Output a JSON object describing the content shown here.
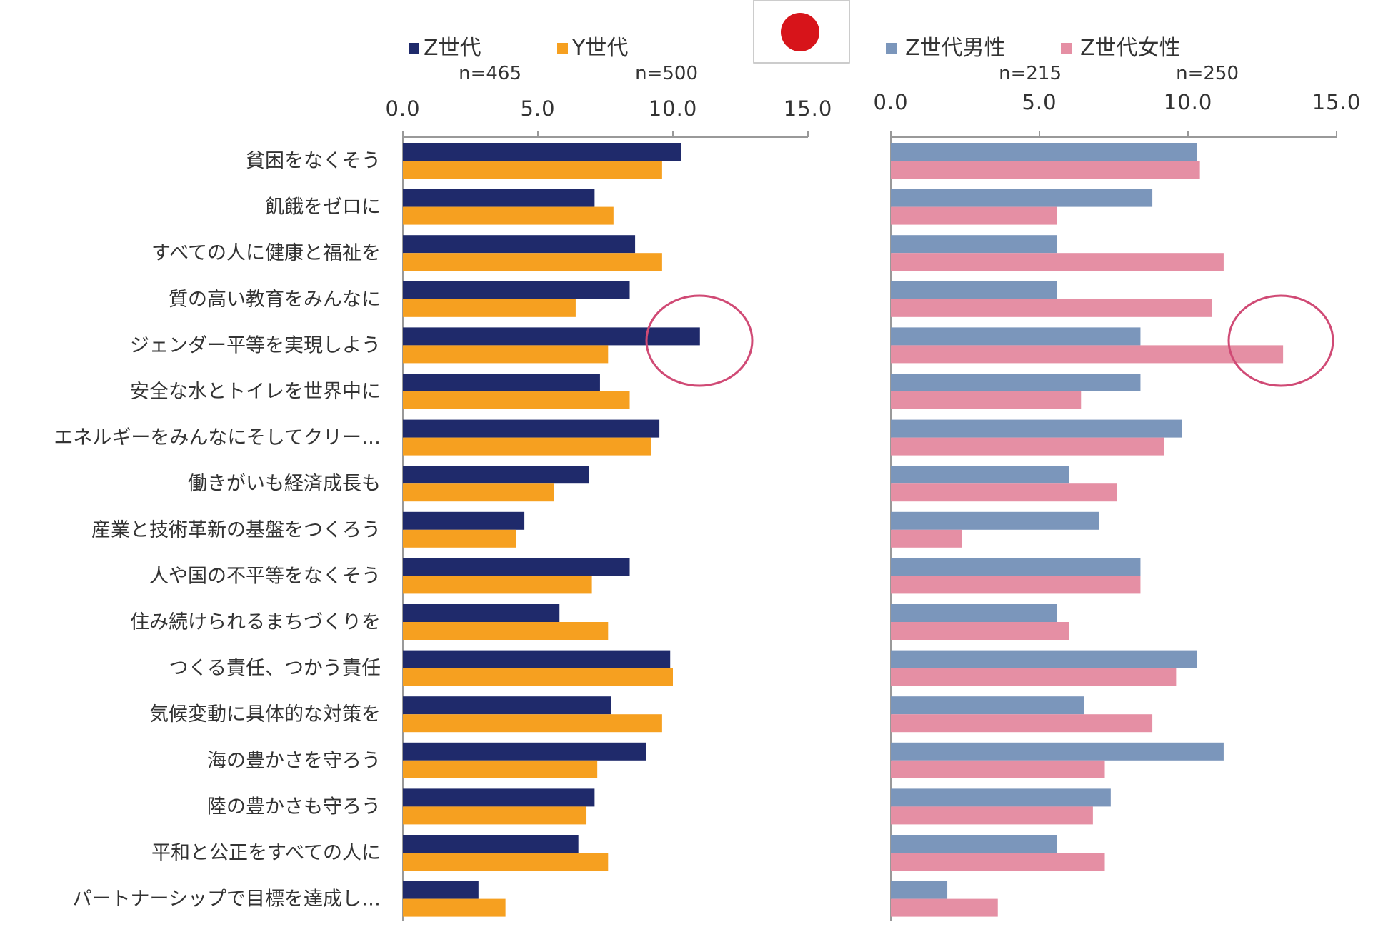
{
  "flag": {
    "icon": "japan-flag-icon",
    "disc_color": "#d7141a"
  },
  "colors": {
    "gen_z": "#1f2a6b",
    "gen_y": "#f6a020",
    "male": "#7b96bb",
    "female": "#e58fa4",
    "highlight": "#d04a75",
    "axis": "#999999",
    "text": "#333333"
  },
  "categories": [
    "貧困をなくそう",
    "飢餓をゼロに",
    "すべての人に健康と福祉を",
    "質の高い教育をみんなに",
    "ジェンダー平等を実現しよう",
    "安全な水とトイレを世界中に",
    "エネルギーをみんなにそしてクリー…",
    "働きがいも経済成長も",
    "産業と技術革新の基盤をつくろう",
    "人や国の不平等をなくそう",
    "住み続けられるまちづくりを",
    "つくる責任、つかう責任",
    "気候変動に具体的な対策を",
    "海の豊かさを守ろう",
    "陸の豊かさも守ろう",
    "平和と公正をすべての人に",
    "パートナーシップで目標を達成し…"
  ],
  "chart_data": [
    {
      "type": "bar",
      "orientation": "horizontal",
      "xlim": [
        0,
        15
      ],
      "ticks": [
        "0.0",
        "5.0",
        "10.0",
        "15.0"
      ],
      "series": [
        {
          "name": "Z世代",
          "n": "n=465",
          "values": [
            10.3,
            7.1,
            8.6,
            8.4,
            11.0,
            7.3,
            9.5,
            6.9,
            4.5,
            8.4,
            5.8,
            9.9,
            7.7,
            9.0,
            7.1,
            6.5,
            2.8
          ]
        },
        {
          "name": "Y世代",
          "n": "n=500",
          "values": [
            9.6,
            7.8,
            9.6,
            6.4,
            7.6,
            8.4,
            9.2,
            5.6,
            4.2,
            7.0,
            7.6,
            10.0,
            9.6,
            7.2,
            6.8,
            7.6,
            3.8
          ]
        }
      ],
      "highlight_category_index": 4,
      "legend_position": "top"
    },
    {
      "type": "bar",
      "orientation": "horizontal",
      "xlim": [
        0,
        15
      ],
      "ticks": [
        "0.0",
        "5.0",
        "10.0",
        "15.0"
      ],
      "series": [
        {
          "name": "Z世代男性",
          "n": "n=215",
          "values": [
            10.3,
            8.8,
            5.6,
            5.6,
            8.4,
            8.4,
            9.8,
            6.0,
            7.0,
            8.4,
            5.6,
            10.3,
            6.5,
            11.2,
            7.4,
            5.6,
            1.9
          ]
        },
        {
          "name": "Z世代女性",
          "n": "n=250",
          "values": [
            10.4,
            5.6,
            11.2,
            10.8,
            13.2,
            6.4,
            9.2,
            7.6,
            2.4,
            8.4,
            6.0,
            9.6,
            8.8,
            7.2,
            6.8,
            7.2,
            3.6
          ]
        }
      ],
      "highlight_category_index": 4,
      "legend_position": "top"
    }
  ]
}
